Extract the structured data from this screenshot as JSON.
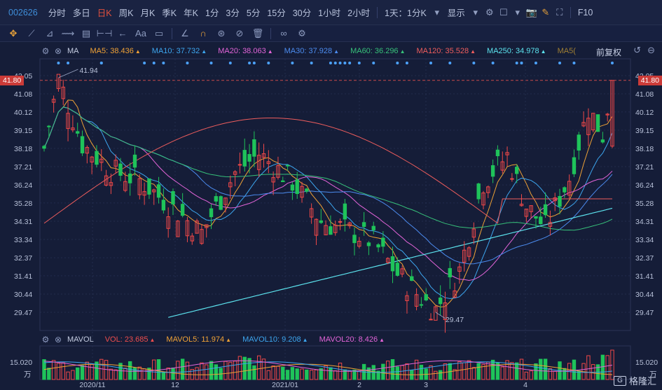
{
  "toolbar": {
    "code": "002626",
    "timeframes": [
      "分时",
      "多日",
      "日K",
      "周K",
      "月K",
      "季K",
      "年K",
      "1分",
      "3分",
      "5分",
      "15分",
      "30分",
      "1小时",
      "2小时"
    ],
    "active_timeframe": "日K",
    "period_select": "1天：1分K",
    "display_label": "显示",
    "f10": "F10"
  },
  "indicator_ma": {
    "name": "MA",
    "items": [
      {
        "label": "MA5: 38.436",
        "color": "#f0a236"
      },
      {
        "label": "MA10: 37.732",
        "color": "#3da6ef"
      },
      {
        "label": "MA20: 38.063",
        "color": "#e264d8"
      },
      {
        "label": "MA30: 37.928",
        "color": "#4c8cf0"
      },
      {
        "label": "MA60: 36.296",
        "color": "#37c07a"
      },
      {
        "label": "MA120: 35.528",
        "color": "#ee5d5d"
      },
      {
        "label": "MA250: 34.978",
        "color": "#5ce3ee"
      },
      {
        "label": "MA5(",
        "color": "#a07f33"
      }
    ],
    "adjust": "前复权"
  },
  "indicator_vol": {
    "name": "MAVOL",
    "items": [
      {
        "label": "VOL: 23.685",
        "color": "#ee4d4d"
      },
      {
        "label": "MAVOL5: 11.974",
        "color": "#f0a236"
      },
      {
        "label": "MAVOL10: 9.208",
        "color": "#3da6ef"
      },
      {
        "label": "MAVOL20: 8.426",
        "color": "#e264d8"
      }
    ]
  },
  "y_axis": {
    "ticks": [
      "42.05",
      "41.08",
      "40.12",
      "39.15",
      "38.18",
      "37.21",
      "36.24",
      "35.28",
      "34.31",
      "33.34",
      "32.37",
      "31.41",
      "30.44",
      "29.47"
    ],
    "current_price": "41.80",
    "high_label": "41.94",
    "low_label": "29.47"
  },
  "volume_axis": {
    "top": "15.020",
    "unit": "万"
  },
  "x_axis": {
    "labels": [
      "2020/11",
      "12",
      "2021/01",
      "2",
      "3",
      "4"
    ]
  },
  "watermark": "格隆汇",
  "colors": {
    "up": "#f04848",
    "down": "#1fc35a",
    "background": "#151d38"
  }
}
